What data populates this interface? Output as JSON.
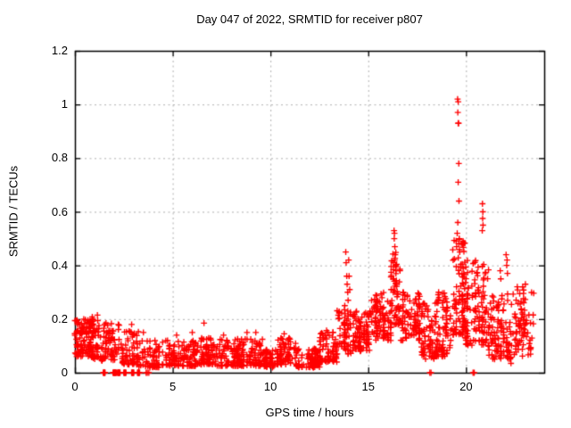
{
  "chart_data": {
    "type": "scatter",
    "title": "Day 047 of 2022, SRMTID for receiver p807",
    "xlabel": "GPS time / hours",
    "ylabel": "SRMTID / TECUs",
    "xlim": [
      0,
      24
    ],
    "ylim": [
      0,
      1.2
    ],
    "xticks": [
      0,
      5,
      10,
      15,
      20
    ],
    "xtick_labels": [
      "0",
      "5",
      "10",
      "15",
      "20"
    ],
    "yticks": [
      0,
      0.2,
      0.4,
      0.6,
      0.8,
      1.0,
      1.2
    ],
    "ytick_labels": [
      "0",
      "0.2",
      "0.4",
      "0.6",
      "0.8",
      "1",
      "1.2"
    ],
    "grid": "dashed at every major tick",
    "legend": "none",
    "marker": "plus",
    "marker_color": "#ff0000",
    "grid_color": "#b0b0b0",
    "axis_color": "#000000",
    "background_color": "#ffffff",
    "series_name": "SRMTID",
    "band_segments": [
      {
        "x0": 0.0,
        "x1": 0.75,
        "lo": 0.06,
        "hi": 0.2,
        "n": 90,
        "skew": 1.1
      },
      {
        "x0": 0.75,
        "x1": 1.35,
        "lo": 0.05,
        "hi": 0.21,
        "n": 70,
        "skew": 1.1
      },
      {
        "x0": 1.35,
        "x1": 2.25,
        "lo": 0.04,
        "hi": 0.19,
        "n": 70,
        "skew": 1.4
      },
      {
        "x0": 2.25,
        "x1": 3.25,
        "lo": 0.03,
        "hi": 0.16,
        "n": 70,
        "skew": 1.6
      },
      {
        "x0": 3.25,
        "x1": 4.3,
        "lo": 0.02,
        "hi": 0.12,
        "n": 60,
        "skew": 1.6
      },
      {
        "x0": 4.3,
        "x1": 6.2,
        "lo": 0.025,
        "hi": 0.12,
        "n": 130,
        "skew": 1.6
      },
      {
        "x0": 6.2,
        "x1": 7.1,
        "lo": 0.03,
        "hi": 0.13,
        "n": 70,
        "skew": 1.6
      },
      {
        "x0": 7.1,
        "x1": 9.6,
        "lo": 0.025,
        "hi": 0.13,
        "n": 180,
        "skew": 1.6
      },
      {
        "x0": 9.6,
        "x1": 10.3,
        "lo": 0.02,
        "hi": 0.09,
        "n": 50,
        "skew": 1.5
      },
      {
        "x0": 10.3,
        "x1": 11.3,
        "lo": 0.03,
        "hi": 0.13,
        "n": 75,
        "skew": 1.6
      },
      {
        "x0": 11.3,
        "x1": 12.5,
        "lo": 0.02,
        "hi": 0.09,
        "n": 85,
        "skew": 1.5
      },
      {
        "x0": 12.5,
        "x1": 13.4,
        "lo": 0.04,
        "hi": 0.16,
        "n": 80,
        "skew": 1.4
      },
      {
        "x0": 13.4,
        "x1": 14.1,
        "lo": 0.07,
        "hi": 0.24,
        "n": 60,
        "skew": 1.4
      },
      {
        "x0": 14.1,
        "x1": 15.1,
        "lo": 0.08,
        "hi": 0.23,
        "n": 90,
        "skew": 1.4
      },
      {
        "x0": 15.1,
        "x1": 16.15,
        "lo": 0.12,
        "hi": 0.3,
        "n": 95,
        "skew": 1.2
      },
      {
        "x0": 16.15,
        "x1": 16.65,
        "lo": 0.18,
        "hi": 0.45,
        "n": 55,
        "skew": 1.3
      },
      {
        "x0": 16.65,
        "x1": 17.7,
        "lo": 0.12,
        "hi": 0.3,
        "n": 90,
        "skew": 1.3
      },
      {
        "x0": 17.7,
        "x1": 18.45,
        "lo": 0.05,
        "hi": 0.26,
        "n": 70,
        "skew": 1.4
      },
      {
        "x0": 18.45,
        "x1": 19.25,
        "lo": 0.06,
        "hi": 0.3,
        "n": 75,
        "skew": 1.4
      },
      {
        "x0": 19.25,
        "x1": 19.95,
        "lo": 0.14,
        "hi": 0.5,
        "n": 90,
        "skew": 1.3
      },
      {
        "x0": 19.95,
        "x1": 21.15,
        "lo": 0.1,
        "hi": 0.42,
        "n": 120,
        "skew": 1.4
      },
      {
        "x0": 21.15,
        "x1": 22.45,
        "lo": 0.05,
        "hi": 0.3,
        "n": 110,
        "skew": 1.4
      },
      {
        "x0": 22.45,
        "x1": 23.45,
        "lo": 0.06,
        "hi": 0.33,
        "n": 80,
        "skew": 1.2
      }
    ],
    "outlier_points": [
      [
        0.45,
        0.2
      ],
      [
        1.15,
        0.215
      ],
      [
        2.9,
        0.18
      ],
      [
        3.5,
        0.15
      ],
      [
        5.2,
        0.14
      ],
      [
        6.0,
        0.15
      ],
      [
        6.6,
        0.185
      ],
      [
        7.6,
        0.14
      ],
      [
        8.8,
        0.15
      ],
      [
        9.25,
        0.15
      ],
      [
        10.1,
        0.02
      ],
      [
        10.7,
        0.145
      ],
      [
        12.2,
        0.02
      ],
      [
        13.8,
        0.25
      ],
      [
        13.82,
        0.22
      ],
      [
        13.85,
        0.45
      ],
      [
        13.87,
        0.41
      ],
      [
        13.9,
        0.36
      ],
      [
        13.92,
        0.33
      ],
      [
        13.95,
        0.3
      ],
      [
        13.97,
        0.27
      ],
      [
        14.0,
        0.42
      ],
      [
        14.02,
        0.36
      ],
      [
        14.05,
        0.31
      ],
      [
        16.28,
        0.3
      ],
      [
        16.3,
        0.35
      ],
      [
        16.32,
        0.53
      ],
      [
        16.33,
        0.5
      ],
      [
        16.34,
        0.52
      ],
      [
        16.36,
        0.47
      ],
      [
        16.38,
        0.44
      ],
      [
        16.35,
        0.42
      ],
      [
        16.4,
        0.4
      ],
      [
        16.42,
        0.38
      ],
      [
        16.45,
        0.33
      ],
      [
        18.6,
        0.3
      ],
      [
        18.62,
        0.28
      ],
      [
        19.52,
        0.47
      ],
      [
        19.55,
        0.52
      ],
      [
        19.57,
        1.02
      ],
      [
        19.58,
        0.97
      ],
      [
        19.58,
        0.56
      ],
      [
        19.6,
        1.01
      ],
      [
        19.6,
        0.93
      ],
      [
        19.6,
        0.71
      ],
      [
        19.62,
        0.93
      ],
      [
        19.63,
        0.78
      ],
      [
        19.64,
        0.64
      ],
      [
        19.65,
        0.5
      ],
      [
        19.68,
        0.45
      ],
      [
        20.83,
        0.53
      ],
      [
        20.84,
        0.63
      ],
      [
        20.85,
        0.575
      ],
      [
        20.86,
        0.6
      ],
      [
        20.87,
        0.55
      ],
      [
        21.75,
        0.38
      ],
      [
        21.78,
        0.35
      ],
      [
        22.05,
        0.44
      ],
      [
        22.08,
        0.4
      ],
      [
        22.1,
        0.42
      ],
      [
        22.12,
        0.37
      ],
      [
        22.3,
        0.035
      ]
    ],
    "zero_value_spans": [
      [
        1.45,
        1.55
      ],
      [
        1.95,
        2.12
      ],
      [
        2.18,
        2.32
      ],
      [
        2.5,
        2.62
      ],
      [
        2.9,
        3.02
      ],
      [
        3.2,
        3.32
      ]
    ],
    "zero_value_points": [
      3.64,
      3.7,
      3.78,
      18.15,
      18.21,
      20.36,
      20.42
    ]
  }
}
